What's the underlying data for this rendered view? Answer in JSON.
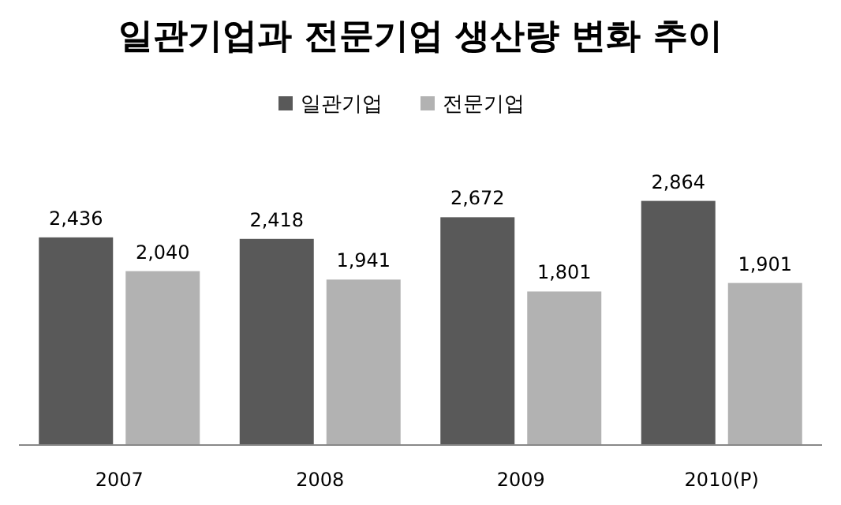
{
  "chart_data": {
    "type": "bar",
    "title": "일관기업과 전문기업 생산량 변화 추이",
    "categories": [
      "2007",
      "2008",
      "2009",
      "2010(P)"
    ],
    "series": [
      {
        "name": "일관기업",
        "color": "#595959",
        "values": [
          2436,
          2418,
          2672,
          2864
        ],
        "value_labels": [
          "2,436",
          "2,418",
          "2,672",
          "2,864"
        ]
      },
      {
        "name": "전문기업",
        "color": "#b2b2b2",
        "values": [
          2040,
          1941,
          1801,
          1901
        ],
        "value_labels": [
          "2,040",
          "1,941",
          "1,801",
          "1,901"
        ]
      }
    ],
    "legend": "top"
  }
}
